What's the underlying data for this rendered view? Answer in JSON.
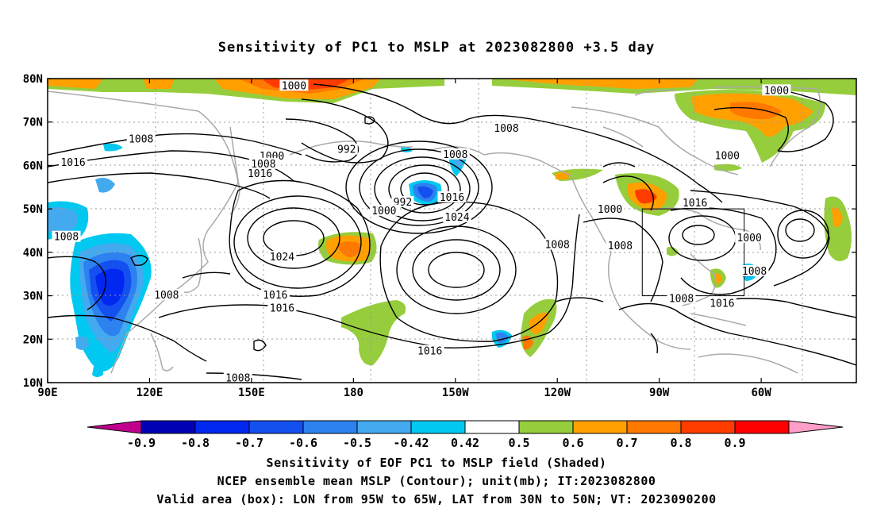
{
  "title": "Sensitivity of PC1 to MSLP at 2023082800 +3.5 day",
  "lat_labels": [
    "80N",
    "70N",
    "60N",
    "50N",
    "40N",
    "30N",
    "20N",
    "10N"
  ],
  "lon_labels": [
    "90E",
    "120E",
    "150E",
    "180",
    "150W",
    "120W",
    "90W",
    "60W"
  ],
  "contour_labels": [
    {
      "text": "1000",
      "lon": 162.5,
      "lat": 78.3
    },
    {
      "text": "1000",
      "lon": -55.5,
      "lat": 77.2
    },
    {
      "text": "1008",
      "lon": -135,
      "lat": 68.5
    },
    {
      "text": "1008",
      "lon": 117.5,
      "lat": 66
    },
    {
      "text": "992",
      "lon": 178,
      "lat": 63.6
    },
    {
      "text": "1008",
      "lon": -150,
      "lat": 62.5
    },
    {
      "text": "1000",
      "lon": -70,
      "lat": 62.2
    },
    {
      "text": "1016",
      "lon": 97.5,
      "lat": 60.6
    },
    {
      "text": "1000",
      "lon": 156,
      "lat": 62.1
    },
    {
      "text": "1008",
      "lon": 153.5,
      "lat": 60.3
    },
    {
      "text": "1016",
      "lon": 152.5,
      "lat": 58.1
    },
    {
      "text": "1016",
      "lon": -151,
      "lat": 52.6
    },
    {
      "text": "992",
      "lon": -165.5,
      "lat": 51.5
    },
    {
      "text": "1000",
      "lon": -171,
      "lat": 49.5
    },
    {
      "text": "1024",
      "lon": -149.5,
      "lat": 48
    },
    {
      "text": "1000",
      "lon": -104.5,
      "lat": 49.8
    },
    {
      "text": "1016",
      "lon": -79.5,
      "lat": 51.3
    },
    {
      "text": "1008",
      "lon": 95.5,
      "lat": 43.5
    },
    {
      "text": "1024",
      "lon": 159,
      "lat": 38.9
    },
    {
      "text": "1000",
      "lon": -63.5,
      "lat": 43.3
    },
    {
      "text": "1008",
      "lon": -120,
      "lat": 41.7
    },
    {
      "text": "1008",
      "lon": -101.5,
      "lat": 41.4
    },
    {
      "text": "1008",
      "lon": -62,
      "lat": 35.6
    },
    {
      "text": "1008",
      "lon": 125,
      "lat": 30.1
    },
    {
      "text": "1016",
      "lon": 157,
      "lat": 30.1
    },
    {
      "text": "1016",
      "lon": 159,
      "lat": 27.1
    },
    {
      "text": "1008",
      "lon": -83.5,
      "lat": 29.3
    },
    {
      "text": "1016",
      "lon": -71.5,
      "lat": 28.2
    },
    {
      "text": "1016",
      "lon": -157.5,
      "lat": 17.2
    },
    {
      "text": "1008",
      "lon": 146,
      "lat": 11
    }
  ],
  "colorbar": {
    "labels": [
      "-0.9",
      "-0.8",
      "-0.7",
      "-0.6",
      "-0.5",
      "-0.42",
      "0.42",
      "0.5",
      "0.6",
      "0.7",
      "0.8",
      "0.9"
    ],
    "colors": [
      "#c0008c",
      "#0000b4",
      "#0028f0",
      "#1450f0",
      "#2d82f0",
      "#44aaf0",
      "#00c8f0",
      "#ffffff",
      "#96cd3c",
      "#ffa000",
      "#ff7800",
      "#ff3c00",
      "#ff0000",
      "#ff9ec8"
    ]
  },
  "box": {
    "lon_min": -95,
    "lon_max": -65,
    "lat_min": 30,
    "lat_max": 50
  },
  "footer": {
    "line1": "Sensitivity of EOF PC1 to MSLP field (Shaded)",
    "line2": "NCEP ensemble mean MSLP (Contour); unit(mb); IT:2023082800",
    "line3": "Valid area (box): LON from 95W to 65W, LAT from 30N to 50N; VT: 2023090200"
  }
}
